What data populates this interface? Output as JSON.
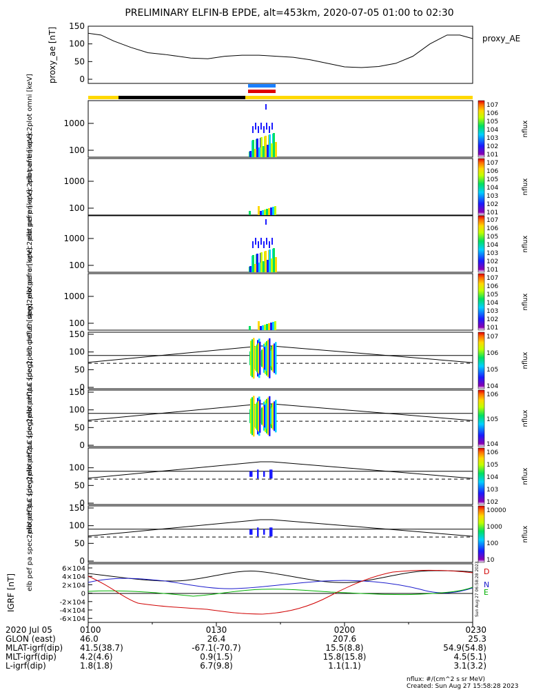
{
  "title": "PRELIMINARY ELFIN-B EPDE, alt=453km, 2020-07-05 01:00 to 02:30",
  "chart_data": [
    {
      "type": "line",
      "name": "proxy_ae",
      "ylabel": "proxy_ae [nT]",
      "legend": "proxy_AE",
      "ylim": [
        0,
        150
      ],
      "yticks": [
        "0",
        "50",
        "100",
        "150"
      ],
      "x_minutes": [
        0,
        3,
        6,
        10,
        14,
        18,
        24,
        28,
        32,
        36,
        40,
        44,
        48,
        52,
        56,
        60,
        64,
        68,
        72,
        76,
        80,
        84,
        87,
        90
      ],
      "values": [
        130,
        125,
        108,
        90,
        75,
        70,
        60,
        58,
        65,
        68,
        68,
        65,
        62,
        55,
        45,
        35,
        33,
        36,
        45,
        65,
        100,
        125,
        125,
        115
      ]
    },
    {
      "type": "heatmap",
      "name": "omni",
      "ylabel": "elb pef en spec2plot omni [keV]",
      "yticks": [
        "100",
        "1000"
      ],
      "colorbar": {
        "label": "nflux",
        "ticks": [
          "10^7",
          "10^6",
          "10^5",
          "10^4",
          "10^3",
          "10^2",
          "10^1"
        ]
      }
    },
    {
      "type": "heatmap",
      "name": "anti",
      "ylabel": "elb pef en spec2plot anti [keV]",
      "yticks": [
        "100",
        "1000"
      ],
      "colorbar": {
        "label": "nflux",
        "ticks": [
          "10^7",
          "10^6",
          "10^5",
          "10^4",
          "10^3",
          "10^2",
          "10^1"
        ]
      }
    },
    {
      "type": "heatmap",
      "name": "perp",
      "ylabel": "elb pef en spec2plot perp [keV]",
      "yticks": [
        "100",
        "1000"
      ],
      "colorbar": {
        "label": "nflux",
        "ticks": [
          "10^7",
          "10^6",
          "10^5",
          "10^4",
          "10^3",
          "10^2",
          "10^1"
        ]
      }
    },
    {
      "type": "heatmap",
      "name": "para",
      "ylabel": "elb pef en spec2plot para [keV]",
      "yticks": [
        "100",
        "1000"
      ],
      "colorbar": {
        "label": "nflux",
        "ticks": [
          "10^7",
          "10^6",
          "10^5",
          "10^4",
          "10^3",
          "10^2",
          "10^1"
        ]
      }
    },
    {
      "type": "heatmap",
      "name": "ch0LC",
      "ylabel": "elb pef pa spec2plot ch0LC [deg]",
      "yticks": [
        "0",
        "50",
        "100",
        "150"
      ],
      "colorbar": {
        "label": "nflux",
        "ticks": [
          "10^7",
          "10^6",
          "10^5",
          "10^4"
        ]
      }
    },
    {
      "type": "heatmap",
      "name": "ch1LC",
      "ylabel": "elb pef pa spec2plot ch1LC [deg]",
      "yticks": [
        "0",
        "50",
        "100",
        "150"
      ],
      "colorbar": {
        "label": "nflux",
        "ticks": [
          "10^6",
          "10^5",
          "10^4"
        ]
      }
    },
    {
      "type": "heatmap",
      "name": "ch2LC",
      "ylabel": "elb pef pa spec2plot ch2LC [deg]",
      "yticks": [
        "0",
        "50",
        "100"
      ],
      "colorbar": {
        "label": "nflux",
        "ticks": [
          "10^6",
          "10^5",
          "10^4",
          "10^3",
          "10^2"
        ]
      }
    },
    {
      "type": "heatmap",
      "name": "ch3LC",
      "ylabel": "elb pef pa spec2plot ch3LC [deg]",
      "yticks": [
        "0",
        "50",
        "100",
        "150"
      ],
      "colorbar": {
        "label": "nflux",
        "ticks": [
          "10000",
          "1000",
          "100",
          "10"
        ]
      }
    },
    {
      "type": "line",
      "name": "IGRF",
      "ylabel": "IGRF [nT]",
      "yticks": [
        "6×10^4",
        "4×10^4",
        "2×10^4",
        "0",
        "-2×10^4",
        "-4×10^4",
        "-6×10^4"
      ],
      "legend": [
        "D",
        "N",
        "E"
      ]
    }
  ],
  "xaxis": {
    "row_labels": [
      "2020 Jul 05",
      "GLON (east)",
      "MLAT-igrf(dip)",
      "MLT-igrf(dip)",
      "L-igrf(dip)"
    ],
    "columns": [
      {
        "minute": 0,
        "values": [
          "0100",
          "46.0",
          "41.5(38.7)",
          "4.2(4.6)",
          "1.8(1.8)"
        ]
      },
      {
        "minute": 30,
        "values": [
          "0130",
          "26.4",
          "-67.1(-70.7)",
          "0.9(1.5)",
          "6.7(9.8)"
        ]
      },
      {
        "minute": 60,
        "values": [
          "0200",
          "207.6",
          "15.5(8.8)",
          "15.8(15.8)",
          "1.1(1.1)"
        ]
      },
      {
        "minute": 90,
        "values": [
          "0230",
          "25.3",
          "54.9(54.8)",
          "4.5(5.1)",
          "3.1(3.2)"
        ]
      }
    ]
  },
  "footer": {
    "nflux": "nflux: #/(cm^2 s sr MeV)",
    "created": "Created: Sun Aug 27 15:58:28 2023",
    "vertical_stamp": "Sun Aug 27 06:58:28 2023"
  }
}
